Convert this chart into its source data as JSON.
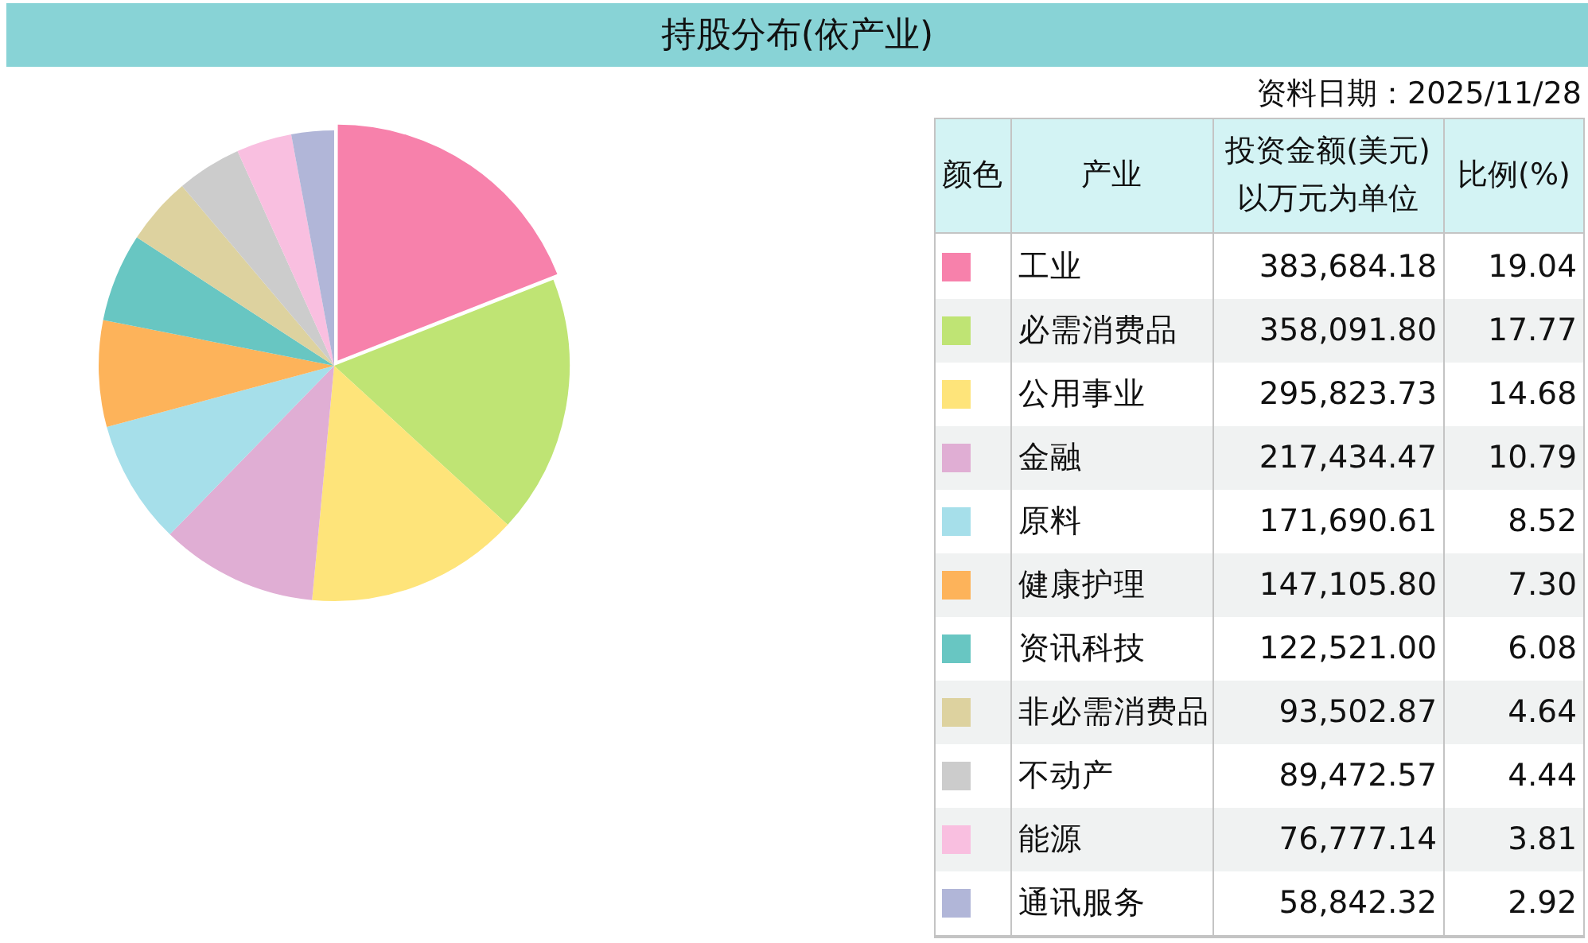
{
  "chart_data": {
    "type": "pie",
    "title": "持股分布(依产业)",
    "annotations": [
      "资料日期：2025/11/28",
      "颜色",
      "产业",
      "投资金额(美元)以万元为单位",
      "比例(%)",
      {
        "text": "383,684.18",
        "x": "工业"
      },
      {
        "text": "358,091.80",
        "x": "必需消费品"
      },
      {
        "text": "295,823.73",
        "x": "公用事业"
      },
      {
        "text": "217,434.47",
        "x": "金融"
      },
      {
        "text": "171,690.61",
        "x": "原料"
      },
      {
        "text": "147,105.80",
        "x": "健康护理"
      },
      {
        "text": "122,521.00",
        "x": "资讯科技"
      },
      {
        "text": "93,502.87",
        "x": "非必需消费品"
      },
      {
        "text": "89,472.57",
        "x": "不动产"
      },
      {
        "text": "76,777.14",
        "x": "能源"
      },
      {
        "text": "58,842.32",
        "x": "通讯服务"
      }
    ],
    "categories": [
      "工业",
      "必需消费品",
      "公用事业",
      "金融",
      "原料",
      "健康护理",
      "资讯科技",
      "非必需消费品",
      "不动产",
      "能源",
      "通讯服务"
    ],
    "values": [
      19.04,
      17.77,
      14.68,
      10.79,
      8.52,
      7.3,
      6.08,
      4.64,
      4.44,
      3.81,
      2.92
    ],
    "value_labels": [
      "19.04",
      "17.77",
      "14.68",
      "10.79",
      "8.52",
      "7.30",
      "6.08",
      "4.64",
      "4.44",
      "3.81",
      "2.92"
    ],
    "colors": [
      "#f781ab",
      "#bfe474",
      "#fee47a",
      "#e0aed4",
      "#a6dfea",
      "#fdb35a",
      "#68c6c2",
      "#ddd29f",
      "#cccccc",
      "#f9bfe0",
      "#b1b6d8"
    ],
    "legend": "right"
  }
}
